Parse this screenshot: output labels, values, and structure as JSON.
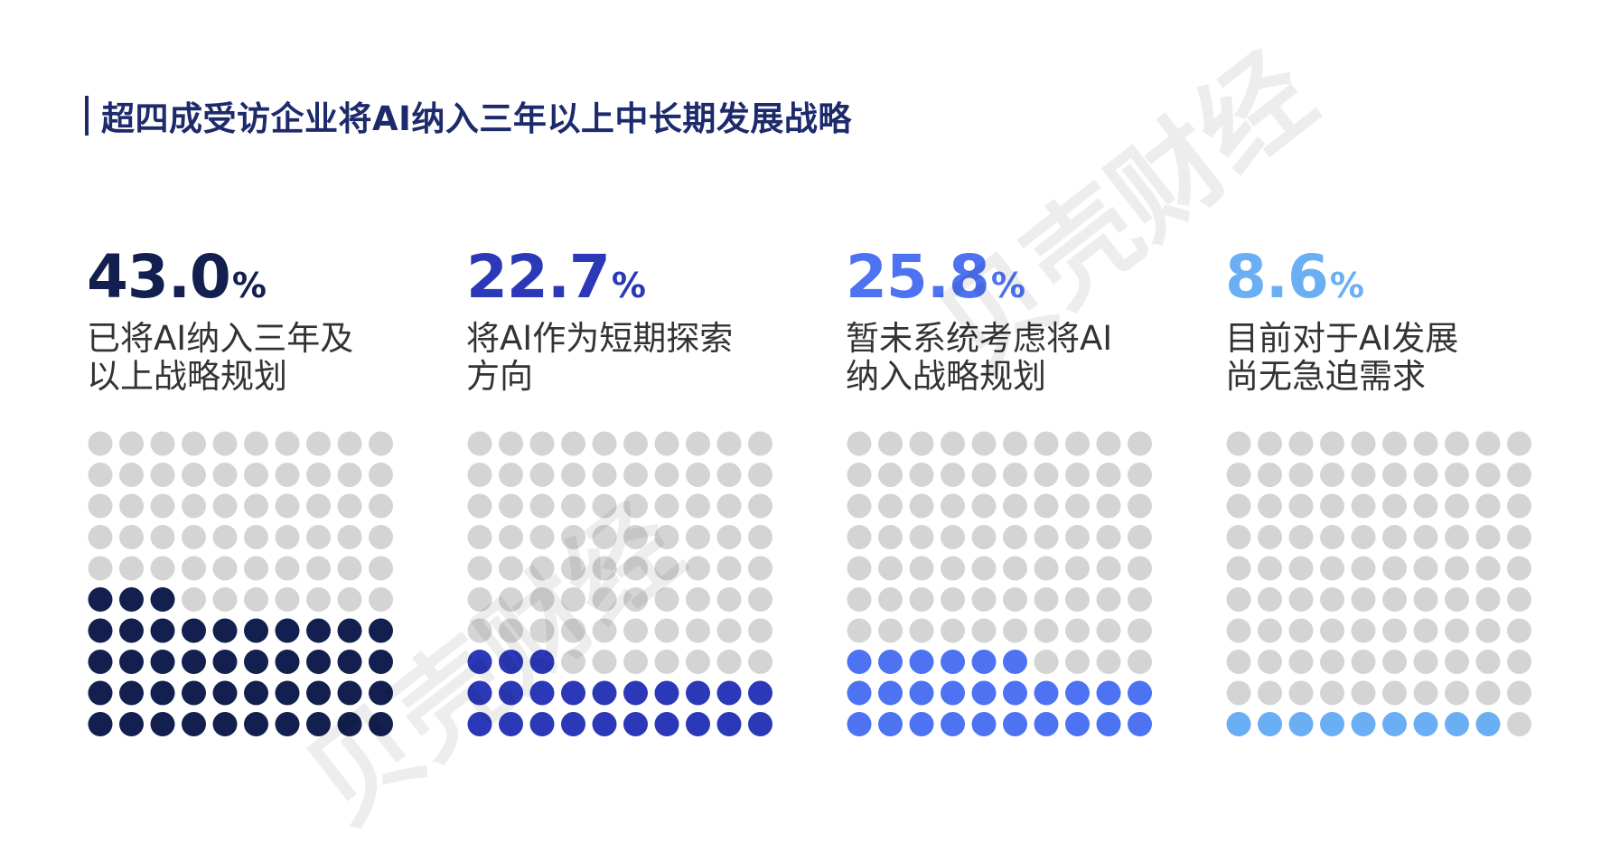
{
  "header": {
    "title": "超四成受访企业将AI纳入三年以上中长期发展战略"
  },
  "watermark": {
    "text": "贝壳财经"
  },
  "colors": {
    "empty_dot": "#d4d4d4"
  },
  "panels": [
    {
      "value": "43.0",
      "unit": "%",
      "desc_line1": "已将AI纳入三年及",
      "desc_line2": "以上战略规划",
      "color": "#13204f"
    },
    {
      "value": "22.7",
      "unit": "%",
      "desc_line1": "将AI作为短期探索",
      "desc_line2": "方向",
      "color": "#2b39b8"
    },
    {
      "value": "25.8",
      "unit": "%",
      "desc_line1": "暂未系统考虑将AI",
      "desc_line2": "纳入战略规划",
      "color": "#4d72f2"
    },
    {
      "value": "8.6",
      "unit": "%",
      "desc_line1": "目前对于AI发展",
      "desc_line2": "尚无急迫需求",
      "color": "#6aaef4"
    }
  ],
  "chart_data": {
    "type": "waffle",
    "grid": "10x10",
    "categories": [
      "已将AI纳入三年及以上战略规划",
      "将AI作为短期探索方向",
      "暂未系统考虑将AI纳入战略规划",
      "目前对于AI发展尚无急迫需求"
    ],
    "values": [
      43.0,
      22.7,
      25.8,
      8.6
    ],
    "filled_dots": [
      43,
      23,
      26,
      9
    ],
    "total_dots": 100,
    "unit": "%"
  }
}
